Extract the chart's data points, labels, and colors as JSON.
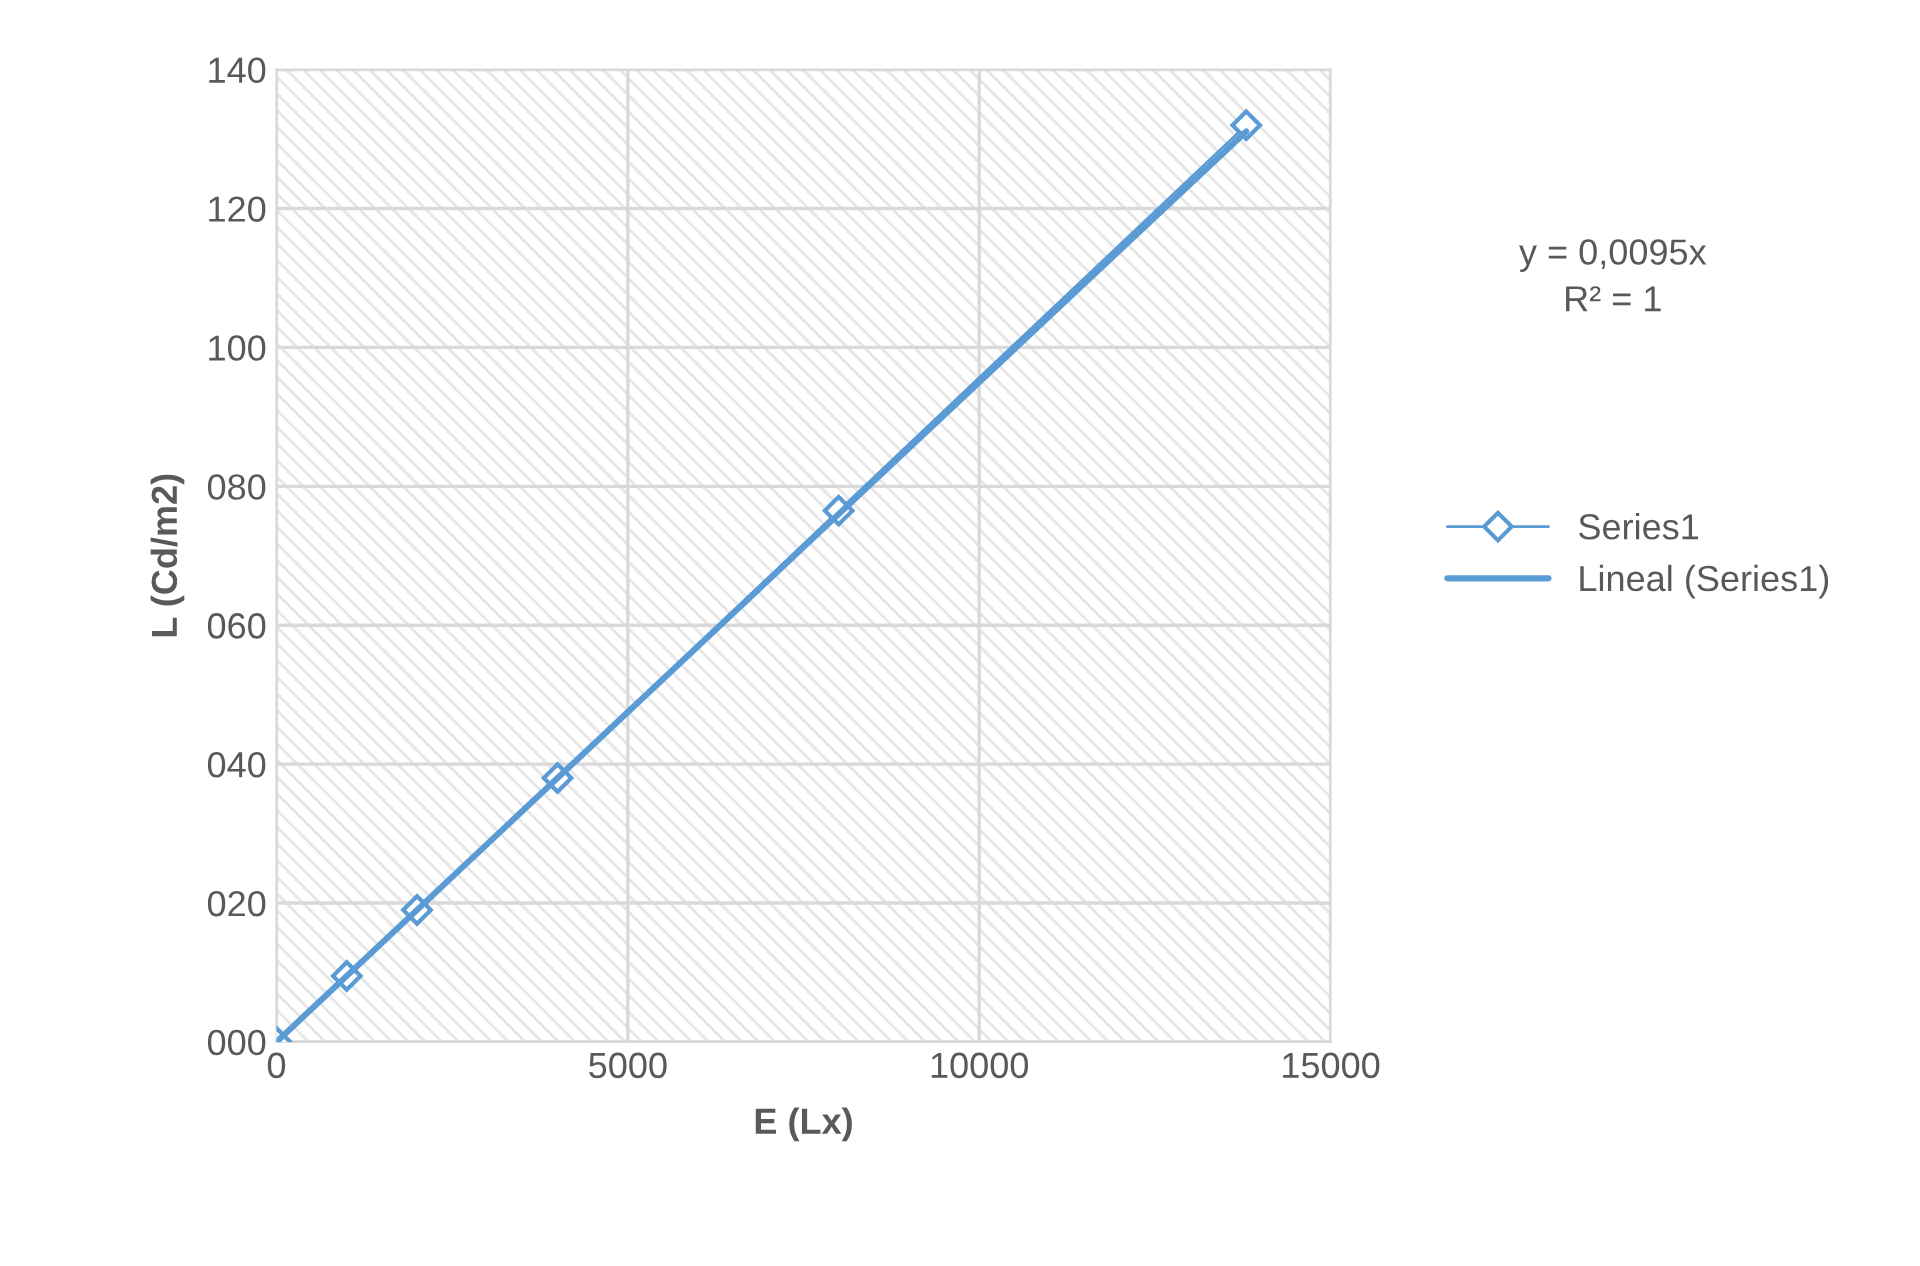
{
  "chart_data": {
    "type": "line",
    "xlabel": "E (Lx)",
    "ylabel": "L (Cd/m2)",
    "x": [
      0,
      1000,
      2000,
      4000,
      8000,
      13800
    ],
    "series": [
      {
        "name": "Series1",
        "color": "#5b9bd5",
        "marker": "diamond",
        "values": [
          0,
          9.5,
          19,
          38,
          76.5,
          132
        ]
      },
      {
        "name": "Lineal (Series1)",
        "color": "#5b9bd5",
        "marker": "none",
        "x": [
          0,
          13800
        ],
        "values": [
          0,
          131.1
        ]
      }
    ],
    "xlim": [
      0,
      15000
    ],
    "xticks": [
      0,
      5000,
      10000,
      15000
    ],
    "ylim": [
      0,
      140
    ],
    "yticks": [
      {
        "value": 0,
        "label": "000"
      },
      {
        "value": 20,
        "label": "020"
      },
      {
        "value": 40,
        "label": "040"
      },
      {
        "value": 60,
        "label": "060"
      },
      {
        "value": 80,
        "label": "080"
      },
      100,
      120,
      140
    ],
    "grid": true,
    "legend": "right",
    "annotations": [
      "y = 0,0095x\nR² = 1"
    ]
  }
}
